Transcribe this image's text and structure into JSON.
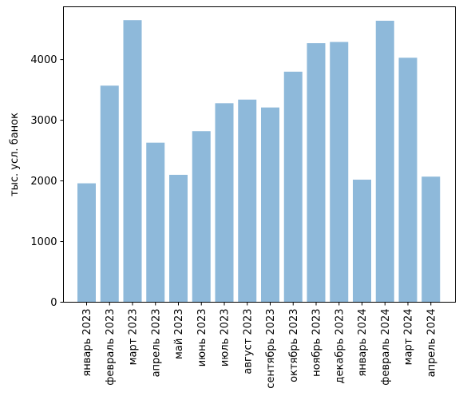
{
  "chart_data": {
    "type": "bar",
    "title": "",
    "xlabel": "",
    "ylabel": "тыс. усл. банок",
    "categories": [
      "январь 2023",
      "февраль 2023",
      "март 2023",
      "апрель 2023",
      "май 2023",
      "июнь 2023",
      "июль 2023",
      "август 2023",
      "сентябрь 2023",
      "октябрь 2023",
      "ноябрь 2023",
      "декабрь 2023",
      "январь 2024",
      "февраль 2024",
      "март 2024",
      "апрель 2024"
    ],
    "values": [
      1960,
      3570,
      4650,
      2630,
      2100,
      2820,
      3280,
      3340,
      3210,
      3800,
      4270,
      4290,
      2020,
      4640,
      4030,
      2070
    ],
    "ylim": [
      0,
      4870
    ],
    "yticks": [
      0,
      1000,
      2000,
      3000,
      4000
    ],
    "bar_color": "#8eb9da",
    "grid": false,
    "legend": "none"
  }
}
